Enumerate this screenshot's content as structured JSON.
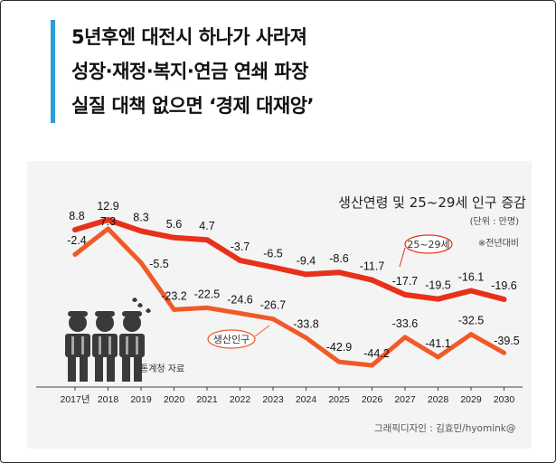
{
  "headline": {
    "line1": "5년후엔 대전시 하나가 사라져",
    "line2": "성장·재정·복지·연금 연쇄 파장",
    "line3": "실질 대책 없으면 ‘경제 대재앙’"
  },
  "chart_data": {
    "type": "line",
    "title": "생산연령 및 25~29세 인구 증감",
    "unit": "(단위 : 만명)",
    "note": "※전년대비",
    "categories": [
      "2017년",
      "2018",
      "2019",
      "2020",
      "2021",
      "2022",
      "2023",
      "2024",
      "2025",
      "2026",
      "2027",
      "2028",
      "2029",
      "2030"
    ],
    "series": [
      {
        "name": "25~29세",
        "color": "#e8311a",
        "values": [
          8.8,
          12.9,
          8.3,
          5.6,
          4.7,
          -3.7,
          -6.5,
          -9.4,
          -8.6,
          -11.7,
          -17.7,
          -19.5,
          -16.1,
          -19.6
        ],
        "labels": [
          "8.8",
          "12.9",
          "8.3",
          "5.6",
          "4.7",
          "-3.7",
          "-6.5",
          "-9.4",
          "-8.6",
          "-11.7",
          "-17.7",
          "-19.5",
          "-16.1",
          "-19.6"
        ]
      },
      {
        "name": "생산인구",
        "color": "#f05a28",
        "values": [
          -2.4,
          7.3,
          -5.5,
          -23.2,
          -22.5,
          -24.6,
          -26.7,
          -33.8,
          -42.9,
          -44.2,
          -33.6,
          -41.1,
          -32.5,
          -39.5
        ],
        "labels": [
          "-2.4",
          "7.3",
          "-5.5",
          "-23.2",
          "-22.5",
          "-24.6",
          "-26.7",
          "-33.8",
          "-42.9",
          "-44.2",
          "-33.6",
          "-41.1",
          "-32.5",
          "-39.5"
        ]
      }
    ],
    "source": "통계청 자료"
  },
  "credit": "그래픽디자인 : 김효민/hyomink@"
}
